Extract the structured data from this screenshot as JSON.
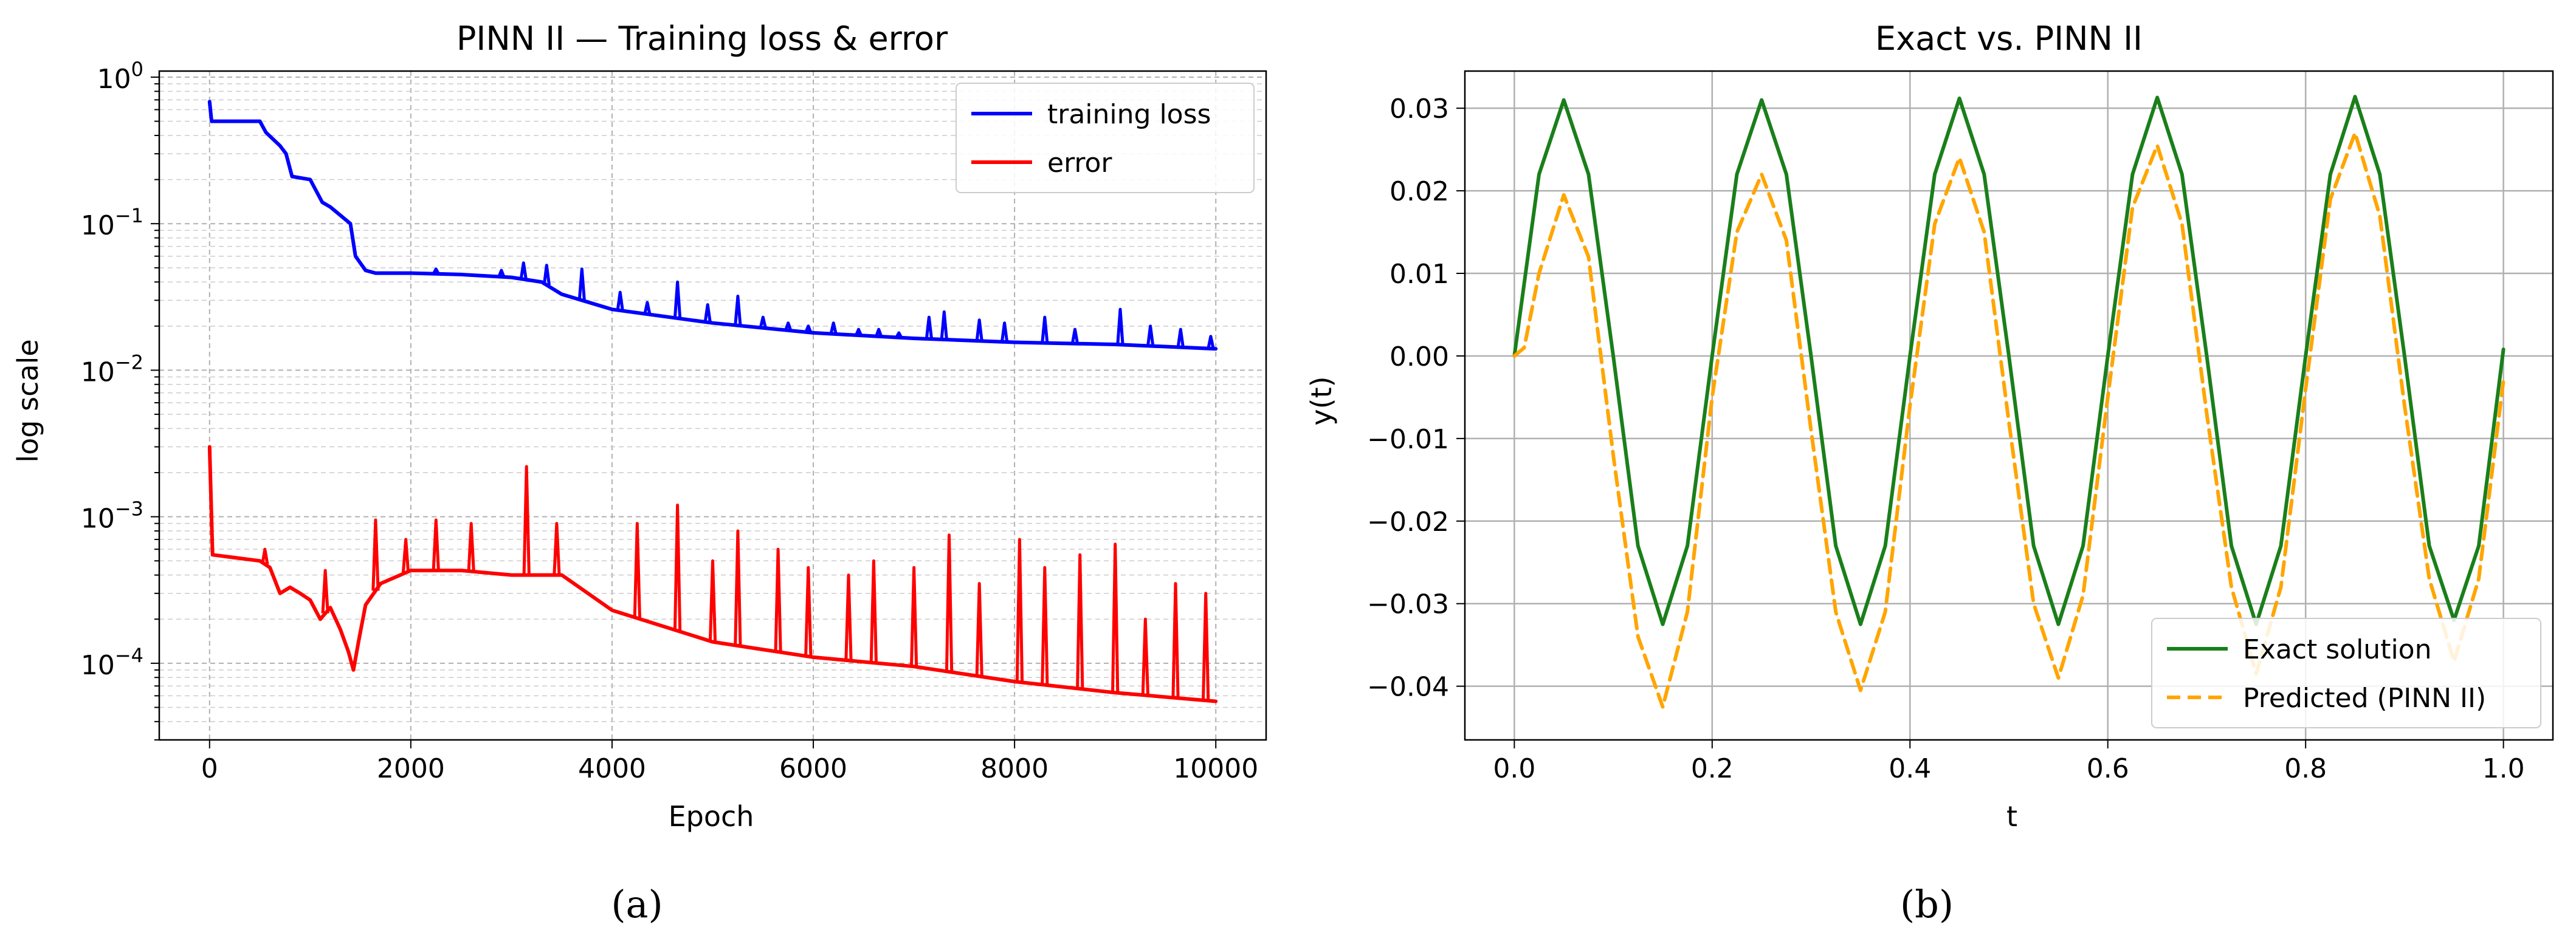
{
  "chart_data": [
    {
      "id": "a",
      "type": "line",
      "title": "PINN II — Training loss & error",
      "xlabel": "Epoch",
      "ylabel": "log scale",
      "yscale": "log",
      "xlim": [
        -500,
        10500
      ],
      "ylim": [
        3e-05,
        1.1
      ],
      "xticks": [
        0,
        2000,
        4000,
        6000,
        8000,
        10000
      ],
      "xtick_labels": [
        "0",
        "2000",
        "4000",
        "6000",
        "8000",
        "10000"
      ],
      "yticks": [
        0.0001,
        0.001,
        0.01,
        0.1,
        1
      ],
      "ytick_labels": [
        {
          "base": "10",
          "exp": "−4"
        },
        {
          "base": "10",
          "exp": "−3"
        },
        {
          "base": "10",
          "exp": "−2"
        },
        {
          "base": "10",
          "exp": "−1"
        },
        {
          "base": "10",
          "exp": "0"
        }
      ],
      "grid": true,
      "legend_position": "top-right",
      "caption": "(a)",
      "series": [
        {
          "name": "training loss",
          "color": "#0000ff",
          "style": "solid",
          "x": [
            0,
            20,
            500,
            560,
            700,
            760,
            820,
            1000,
            1120,
            1200,
            1400,
            1450,
            1550,
            1650,
            2000,
            2500,
            3000,
            3300,
            3500,
            4000,
            5000,
            6000,
            7000,
            8000,
            9000,
            10000
          ],
          "y": [
            0.68,
            0.5,
            0.5,
            0.42,
            0.34,
            0.3,
            0.21,
            0.2,
            0.14,
            0.13,
            0.1,
            0.06,
            0.048,
            0.046,
            0.046,
            0.045,
            0.043,
            0.04,
            0.033,
            0.026,
            0.021,
            0.018,
            0.0165,
            0.0155,
            0.015,
            0.014
          ],
          "spikes": [
            {
              "x": 2250,
              "y": 0.049
            },
            {
              "x": 2900,
              "y": 0.048
            },
            {
              "x": 3120,
              "y": 0.054
            },
            {
              "x": 3350,
              "y": 0.052
            },
            {
              "x": 3700,
              "y": 0.049
            },
            {
              "x": 4080,
              "y": 0.034
            },
            {
              "x": 4350,
              "y": 0.029
            },
            {
              "x": 4650,
              "y": 0.04
            },
            {
              "x": 4950,
              "y": 0.028
            },
            {
              "x": 5250,
              "y": 0.032
            },
            {
              "x": 5500,
              "y": 0.023
            },
            {
              "x": 5750,
              "y": 0.021
            },
            {
              "x": 5950,
              "y": 0.02
            },
            {
              "x": 6200,
              "y": 0.021
            },
            {
              "x": 6450,
              "y": 0.019
            },
            {
              "x": 6650,
              "y": 0.019
            },
            {
              "x": 6850,
              "y": 0.018
            },
            {
              "x": 7150,
              "y": 0.023
            },
            {
              "x": 7300,
              "y": 0.025
            },
            {
              "x": 7650,
              "y": 0.022
            },
            {
              "x": 7900,
              "y": 0.021
            },
            {
              "x": 8300,
              "y": 0.023
            },
            {
              "x": 8600,
              "y": 0.019
            },
            {
              "x": 9050,
              "y": 0.026
            },
            {
              "x": 9350,
              "y": 0.02
            },
            {
              "x": 9650,
              "y": 0.019
            },
            {
              "x": 9950,
              "y": 0.017
            }
          ]
        },
        {
          "name": "error",
          "color": "#ff0000",
          "style": "solid",
          "x": [
            0,
            30,
            500,
            600,
            700,
            800,
            900,
            1000,
            1100,
            1200,
            1300,
            1380,
            1430,
            1480,
            1550,
            1700,
            2000,
            2500,
            3000,
            3500,
            4000,
            5000,
            6000,
            7000,
            8000,
            9000,
            10000
          ],
          "y": [
            0.003,
            0.00055,
            0.0005,
            0.00045,
            0.0003,
            0.00033,
            0.0003,
            0.00027,
            0.0002,
            0.00024,
            0.00017,
            0.00012,
            9e-05,
            0.00014,
            0.00025,
            0.00035,
            0.00043,
            0.00043,
            0.0004,
            0.0004,
            0.00023,
            0.00014,
            0.00011,
            9.5e-05,
            7.5e-05,
            6.3e-05,
            5.5e-05
          ],
          "spikes": [
            {
              "x": 550,
              "y": 0.0006
            },
            {
              "x": 1150,
              "y": 0.00043
            },
            {
              "x": 1650,
              "y": 0.00095
            },
            {
              "x": 1950,
              "y": 0.0007
            },
            {
              "x": 2250,
              "y": 0.00095
            },
            {
              "x": 2600,
              "y": 0.0009
            },
            {
              "x": 3150,
              "y": 0.0022
            },
            {
              "x": 3450,
              "y": 0.0009
            },
            {
              "x": 4250,
              "y": 0.0009
            },
            {
              "x": 4650,
              "y": 0.0012
            },
            {
              "x": 5000,
              "y": 0.0005
            },
            {
              "x": 5250,
              "y": 0.0008
            },
            {
              "x": 5650,
              "y": 0.0006
            },
            {
              "x": 5950,
              "y": 0.00045
            },
            {
              "x": 6350,
              "y": 0.0004
            },
            {
              "x": 6600,
              "y": 0.0005
            },
            {
              "x": 7000,
              "y": 0.00045
            },
            {
              "x": 7350,
              "y": 0.00075
            },
            {
              "x": 7650,
              "y": 0.00035
            },
            {
              "x": 8050,
              "y": 0.0007
            },
            {
              "x": 8300,
              "y": 0.00045
            },
            {
              "x": 8650,
              "y": 0.00055
            },
            {
              "x": 9000,
              "y": 0.00065
            },
            {
              "x": 9300,
              "y": 0.0002
            },
            {
              "x": 9600,
              "y": 0.00035
            },
            {
              "x": 9900,
              "y": 0.0003
            }
          ]
        }
      ]
    },
    {
      "id": "b",
      "type": "line",
      "title": "Exact vs. PINN II",
      "xlabel": "t",
      "ylabel": "y(t)",
      "xlim": [
        -0.05,
        1.05
      ],
      "ylim": [
        -0.0465,
        0.0345
      ],
      "xticks": [
        0,
        0.2,
        0.4,
        0.6,
        0.8,
        1.0
      ],
      "xtick_labels": [
        "0.0",
        "0.2",
        "0.4",
        "0.6",
        "0.8",
        "1.0"
      ],
      "yticks": [
        -0.04,
        -0.03,
        -0.02,
        -0.01,
        0,
        0.01,
        0.02,
        0.03
      ],
      "ytick_labels": [
        "−0.04",
        "−0.03",
        "−0.02",
        "−0.01",
        "0.00",
        "0.01",
        "0.02",
        "0.03"
      ],
      "grid": true,
      "legend_position": "bottom-right",
      "caption": "(b)",
      "series": [
        {
          "name": "Exact solution",
          "color": "#1a7f1a",
          "style": "solid",
          "x": [
            0,
            0.025,
            0.05,
            0.075,
            0.1,
            0.125,
            0.15,
            0.175,
            0.2,
            0.225,
            0.25,
            0.275,
            0.3,
            0.325,
            0.35,
            0.375,
            0.4,
            0.425,
            0.45,
            0.475,
            0.5,
            0.525,
            0.55,
            0.575,
            0.6,
            0.625,
            0.65,
            0.675,
            0.7,
            0.725,
            0.75,
            0.775,
            0.8,
            0.825,
            0.85,
            0.875,
            0.9,
            0.925,
            0.95,
            0.975,
            1.0
          ],
          "y": [
            0.0,
            0.022,
            0.031,
            0.022,
            0.0,
            -0.023,
            -0.0325,
            -0.023,
            0.0,
            0.022,
            0.031,
            0.022,
            0.0,
            -0.023,
            -0.0325,
            -0.023,
            0.0,
            0.022,
            0.0312,
            0.022,
            0.0,
            -0.023,
            -0.0325,
            -0.023,
            0.0,
            0.022,
            0.0313,
            0.022,
            0.0,
            -0.023,
            -0.0325,
            -0.023,
            0.0,
            0.022,
            0.0314,
            0.022,
            0.0,
            -0.023,
            -0.032,
            -0.023,
            0.0008
          ]
        },
        {
          "name": "Predicted (PINN II)",
          "color": "#ffa500",
          "style": "dashed",
          "x": [
            0,
            0.01,
            0.025,
            0.05,
            0.075,
            0.1,
            0.125,
            0.15,
            0.175,
            0.2,
            0.225,
            0.25,
            0.275,
            0.3,
            0.325,
            0.35,
            0.375,
            0.4,
            0.425,
            0.45,
            0.475,
            0.5,
            0.525,
            0.55,
            0.575,
            0.6,
            0.625,
            0.65,
            0.675,
            0.7,
            0.725,
            0.75,
            0.775,
            0.8,
            0.825,
            0.85,
            0.875,
            0.9,
            0.925,
            0.95,
            0.975,
            1.0
          ],
          "y": [
            0.0,
            0.001,
            0.01,
            0.0195,
            0.012,
            -0.012,
            -0.034,
            -0.0425,
            -0.031,
            -0.005,
            0.015,
            0.022,
            0.014,
            -0.009,
            -0.031,
            -0.0405,
            -0.031,
            -0.006,
            0.016,
            0.024,
            0.015,
            -0.008,
            -0.03,
            -0.039,
            -0.029,
            -0.005,
            0.018,
            0.0255,
            0.016,
            -0.007,
            -0.028,
            -0.0385,
            -0.028,
            -0.004,
            0.019,
            0.027,
            0.017,
            -0.006,
            -0.027,
            -0.037,
            -0.027,
            -0.003
          ]
        }
      ]
    }
  ]
}
